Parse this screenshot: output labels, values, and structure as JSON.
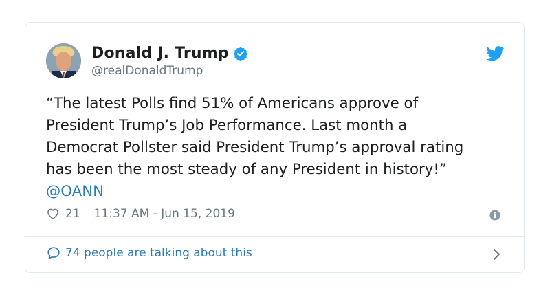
{
  "tweet": {
    "author": {
      "display_name": "Donald J. Trump",
      "handle": "@realDonaldTrump",
      "verified": true
    },
    "text": "“The latest Polls find 51% of Americans approve of\nPresident Trump’s Job Performance. Last month a\nDemocrat Pollster said President Trump’s approval rating\nhas been the most steady of any President in history!”",
    "mention": "@OANN",
    "like_count": "21",
    "timestamp": "11:37 AM - Jun 15, 2019",
    "talking_about": "74 people are talking about this"
  },
  "icons": {
    "brand": "twitter-bird-icon",
    "verified": "verified-badge-icon",
    "like": "heart-icon",
    "info": "info-icon",
    "reply": "speech-bubble-icon",
    "chevron": "chevron-right-icon"
  },
  "colors": {
    "brand_blue": "#1da1f2",
    "link_blue": "#2b7bb9",
    "text": "#1c2022",
    "muted": "#697882",
    "border": "#e1e8ed"
  }
}
